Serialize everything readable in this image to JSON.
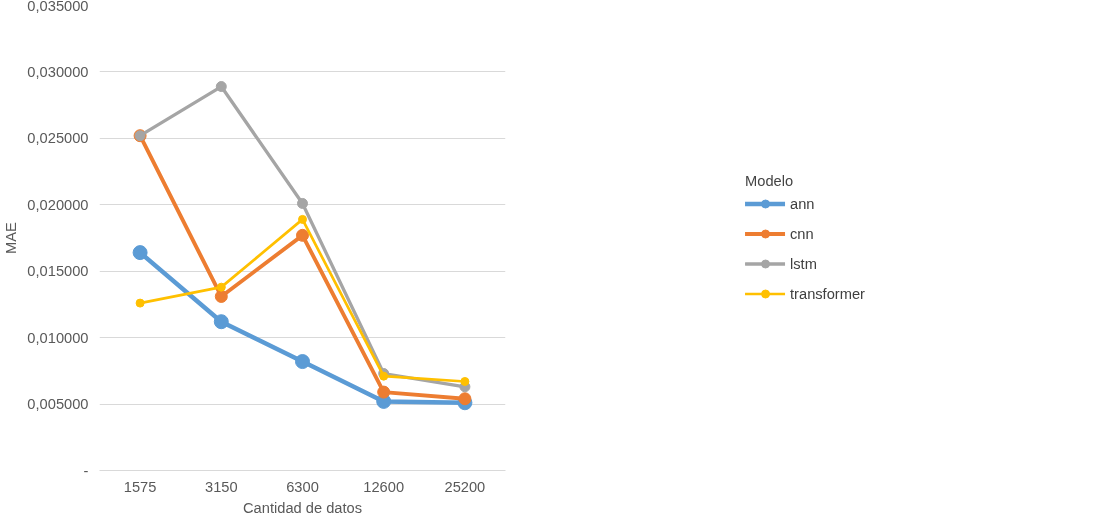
{
  "chart_data": {
    "type": "line",
    "xlabel": "Cantidad de datos",
    "ylabel": "MAE",
    "legend_title": "Modelo",
    "categories": [
      "1575",
      "3150",
      "6300",
      "12600",
      "25200"
    ],
    "series": [
      {
        "name": "ann",
        "color": "#5b9bd5",
        "values": [
          0.0164,
          0.0112,
          0.0082,
          0.0052,
          0.0051
        ]
      },
      {
        "name": "cnn",
        "color": "#ed7d31",
        "values": [
          0.0252,
          0.0131,
          0.0177,
          0.0059,
          0.0054
        ]
      },
      {
        "name": "lstm",
        "color": "#a5a5a5",
        "values": [
          0.0252,
          0.0289,
          0.0201,
          0.0073,
          0.0063
        ]
      },
      {
        "name": "transformer",
        "color": "#ffc000",
        "values": [
          0.0126,
          0.0138,
          0.0189,
          0.0071,
          0.0067
        ]
      }
    ],
    "ylim": [
      0,
      0.035
    ],
    "yticks": [
      {
        "value": 0,
        "label": "-"
      },
      {
        "value": 0.005,
        "label": "0,005000"
      },
      {
        "value": 0.01,
        "label": "0,010000"
      },
      {
        "value": 0.015,
        "label": "0,015000"
      },
      {
        "value": 0.02,
        "label": "0,020000"
      },
      {
        "value": 0.025,
        "label": "0,025000"
      },
      {
        "value": 0.03,
        "label": "0,030000"
      },
      {
        "value": 0.035,
        "label": "0,035000"
      }
    ],
    "grid": "y",
    "legend": "right",
    "marker": "circle",
    "line_style": "solid"
  }
}
